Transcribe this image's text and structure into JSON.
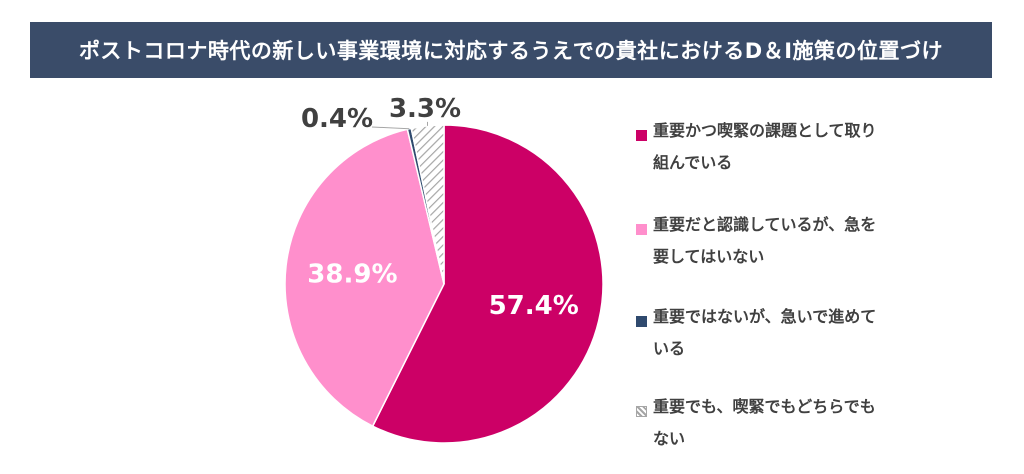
{
  "title": "ポストコロナ時代の新しい事業環境に対応するうえでの貴社におけるD＆I施策の位置づけ",
  "colors": {
    "title_bg": "#3a4c69",
    "slice_1": "#cc0066",
    "slice_2": "#ff8fcc",
    "slice_3": "#2f4a6e",
    "slice_4": "hatched-gray"
  },
  "chart_data": {
    "type": "pie",
    "title": "ポストコロナ時代の新しい事業環境に対応するうえでの貴社におけるD＆I施策の位置づけ",
    "slices": [
      {
        "label": "重要かつ喫緊の課題として取り組んでいる",
        "value": 57.4,
        "display": "57.4%"
      },
      {
        "label": "重要だと認識しているが、急を要してはいない",
        "value": 38.9,
        "display": "38.9%"
      },
      {
        "label": "重要ではないが、急いで進めている",
        "value": 0.4,
        "display": "0.4%"
      },
      {
        "label": "重要でも、喫緊でもどちらでもない",
        "value": 3.3,
        "display": "3.3%"
      }
    ],
    "legend_position": "right"
  },
  "legend": [
    {
      "label": "重要かつ喫緊の課題として取り組んでいる"
    },
    {
      "label": "重要だと認識しているが、急を要してはいない"
    },
    {
      "label": "重要ではないが、急いで進めている"
    },
    {
      "label": "重要でも、喫緊でもどちらでもない"
    }
  ]
}
